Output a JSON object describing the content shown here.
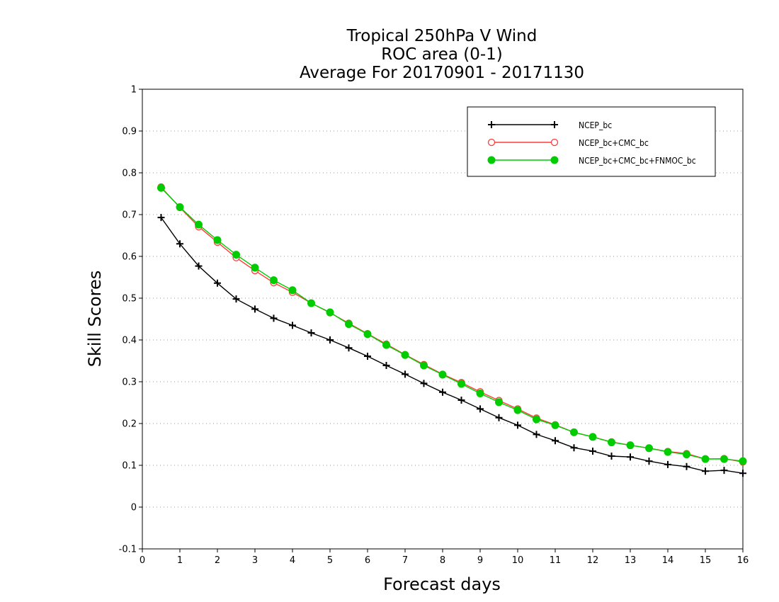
{
  "chart_data": {
    "type": "line",
    "title_lines": [
      "Tropical 250hPa V Wind",
      "ROC area (0-1)",
      "Average For 20170901 - 20171130"
    ],
    "xlabel": "Forecast days",
    "ylabel": "Skill Scores",
    "xlim": [
      0,
      16
    ],
    "ylim": [
      -0.1,
      1
    ],
    "xticks": [
      0,
      1,
      2,
      3,
      4,
      5,
      6,
      7,
      8,
      9,
      10,
      11,
      12,
      13,
      14,
      15,
      16
    ],
    "yticks": [
      -0.1,
      0,
      0.1,
      0.2,
      0.3,
      0.4,
      0.5,
      0.6,
      0.7,
      0.8,
      0.9,
      1
    ],
    "ytick_labels": [
      "-0.1",
      "0",
      "0.1",
      "0.2",
      "0.3",
      "0.4",
      "0.5",
      "0.6",
      "0.7",
      "0.8",
      "0.9",
      "1"
    ],
    "grid": "horizontal dotted",
    "legend_position": "top-right",
    "x": [
      0.5,
      1,
      1.5,
      2,
      2.5,
      3,
      3.5,
      4,
      4.5,
      5,
      5.5,
      6,
      6.5,
      7,
      7.5,
      8,
      8.5,
      9,
      9.5,
      10,
      10.5,
      11,
      11.5,
      12,
      12.5,
      13,
      13.5,
      14,
      14.5,
      15,
      15.5,
      16
    ],
    "series": [
      {
        "name": "NCEP_bc",
        "color": "#000000",
        "marker": "plus",
        "values": [
          0.693,
          0.63,
          0.577,
          0.536,
          0.498,
          0.474,
          0.452,
          0.435,
          0.417,
          0.4,
          0.381,
          0.361,
          0.339,
          0.318,
          0.296,
          0.275,
          0.256,
          0.235,
          0.214,
          0.196,
          0.174,
          0.159,
          0.142,
          0.134,
          0.122,
          0.12,
          0.11,
          0.102,
          0.097,
          0.086,
          0.088,
          0.081
        ]
      },
      {
        "name": "NCEP_bc+CMC_bc",
        "color": "#ff3b3b",
        "marker": "open-circle",
        "values": [
          0.766,
          0.717,
          0.671,
          0.634,
          0.597,
          0.566,
          0.537,
          0.514,
          0.488,
          0.465,
          0.44,
          0.415,
          0.39,
          0.365,
          0.341,
          0.318,
          0.298,
          0.276,
          0.255,
          0.235,
          0.213,
          0.197,
          0.179,
          0.168,
          0.156,
          0.148,
          0.141,
          0.133,
          0.128,
          0.115,
          0.116,
          0.108
        ]
      },
      {
        "name": "NCEP_bc+CMC_bc+FNMOC_bc",
        "color": "#00cc00",
        "marker": "filled-circle",
        "values": [
          0.764,
          0.718,
          0.676,
          0.639,
          0.604,
          0.573,
          0.543,
          0.519,
          0.488,
          0.466,
          0.438,
          0.414,
          0.388,
          0.364,
          0.339,
          0.317,
          0.295,
          0.272,
          0.251,
          0.232,
          0.21,
          0.196,
          0.179,
          0.168,
          0.155,
          0.148,
          0.141,
          0.132,
          0.126,
          0.115,
          0.115,
          0.11
        ]
      }
    ]
  }
}
